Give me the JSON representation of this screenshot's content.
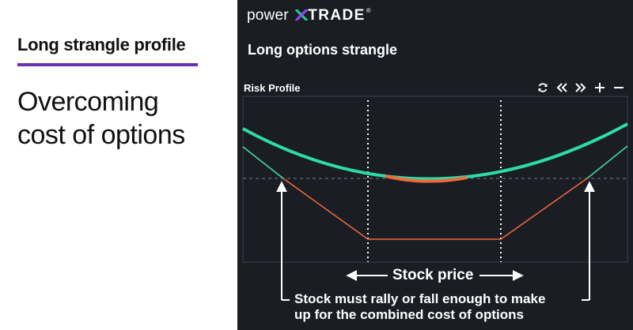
{
  "slide": {
    "heading": "Long strangle profile",
    "subheading_line1": "Overcoming",
    "subheading_line2": "cost of options"
  },
  "panel": {
    "brand_prefix": "power",
    "brand_suffix": "TRADE",
    "brand_tm": "®",
    "title": "Long options strangle",
    "risk_label": "Risk Profile",
    "controls": [
      "refresh-icon",
      "rewind-icon",
      "fast-forward-icon",
      "zoom-in-icon",
      "zoom-out-icon"
    ]
  },
  "annotations": {
    "stock_price": "Stock price",
    "note_line1": "Stock must rally or fall enough to make",
    "note_line2": "up for the combined cost of options"
  },
  "colors": {
    "accent_purple": "#6b2fb6",
    "panel_bg": "#1b1d25",
    "profit_green": "#2ddba6",
    "loss_orange": "#f06a3a",
    "brand_x_green": "#27c48b",
    "brand_x_purple": "#8a4cf0"
  }
}
